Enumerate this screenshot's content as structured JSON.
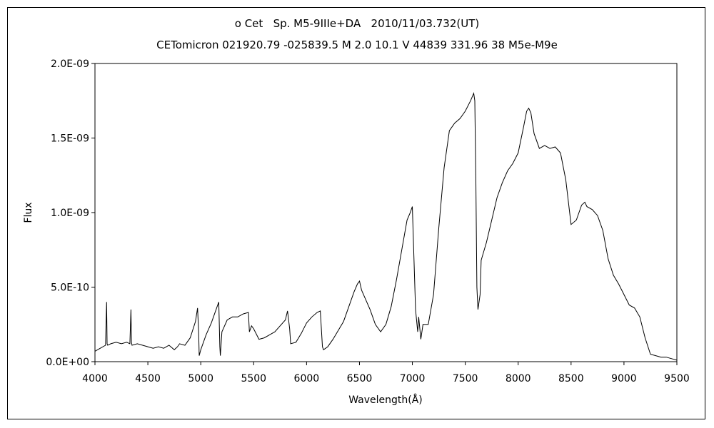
{
  "chart_data": {
    "type": "line",
    "title": "o Cet   Sp. M5-9IIIe+DA   2010/11/03.732(UT)",
    "subtitle": "CETomicron 021920.79 -025839.5 M 2.0 10.1 V 44839 331.96 38 M5e-M9e",
    "xlabel": "Wavelength(Å)",
    "ylabel": "Flux",
    "xlim": [
      4000,
      9500
    ],
    "ylim": [
      0,
      2e-09
    ],
    "x_ticks": [
      4000,
      4500,
      5000,
      5500,
      6000,
      6500,
      7000,
      7500,
      8000,
      8500,
      9000,
      9500
    ],
    "x_tick_labels": [
      "4000",
      "4500",
      "5000",
      "5500",
      "6000",
      "6500",
      "7000",
      "7500",
      "8000",
      "8500",
      "9000",
      "9500"
    ],
    "y_ticks": [
      0,
      5e-10,
      1e-09,
      1.5e-09,
      2e-09
    ],
    "y_tick_labels": [
      "0.0E+00",
      "5.0E-10",
      "1.0E-09",
      "1.5E-09",
      "2.0E-09"
    ],
    "grid": false,
    "legend": "none",
    "line_color": "#000000",
    "series": [
      {
        "x": [
          4000,
          4050,
          4100,
          4110,
          4115,
          4120,
          4150,
          4200,
          4250,
          4300,
          4330,
          4340,
          4345,
          4350,
          4400,
          4450,
          4500,
          4550,
          4600,
          4650,
          4700,
          4750,
          4780,
          4800,
          4850,
          4900,
          4950,
          4970,
          4980,
          4985,
          5000,
          5050,
          5100,
          5150,
          5170,
          5180,
          5185,
          5200,
          5250,
          5300,
          5350,
          5400,
          5450,
          5460,
          5480,
          5500,
          5550,
          5600,
          5650,
          5700,
          5750,
          5800,
          5820,
          5840,
          5850,
          5900,
          5950,
          6000,
          6050,
          6100,
          6130,
          6150,
          6160,
          6200,
          6250,
          6300,
          6350,
          6400,
          6450,
          6480,
          6500,
          6520,
          6550,
          6600,
          6650,
          6700,
          6750,
          6800,
          6850,
          6900,
          6950,
          6980,
          7000,
          7030,
          7050,
          7060,
          7080,
          7100,
          7150,
          7200,
          7250,
          7300,
          7350,
          7400,
          7450,
          7500,
          7550,
          7580,
          7590,
          7600,
          7610,
          7620,
          7640,
          7650,
          7700,
          7750,
          7800,
          7850,
          7900,
          7950,
          8000,
          8050,
          8080,
          8100,
          8120,
          8150,
          8200,
          8250,
          8300,
          8350,
          8400,
          8450,
          8500,
          8550,
          8600,
          8630,
          8650,
          8700,
          8750,
          8800,
          8850,
          8900,
          8950,
          9000,
          9050,
          9100,
          9150,
          9200,
          9250,
          9300,
          9350,
          9400,
          9450,
          9500
        ],
        "y": [
          7e-11,
          9e-11,
          1.1e-10,
          4e-10,
          1.2e-10,
          1.1e-10,
          1.2e-10,
          1.3e-10,
          1.2e-10,
          1.3e-10,
          1.2e-10,
          3.5e-10,
          1.3e-10,
          1.1e-10,
          1.2e-10,
          1.1e-10,
          1e-10,
          9e-11,
          1e-10,
          9e-11,
          1.1e-10,
          8e-11,
          1e-10,
          1.2e-10,
          1.1e-10,
          1.6e-10,
          2.7e-10,
          3.6e-10,
          2e-10,
          4e-11,
          8e-11,
          1.8e-10,
          2.6e-10,
          3.6e-10,
          4e-10,
          1e-10,
          4e-11,
          2e-10,
          2.8e-10,
          3e-10,
          3e-10,
          3.2e-10,
          3.3e-10,
          2e-10,
          2.4e-10,
          2.2e-10,
          1.5e-10,
          1.6e-10,
          1.8e-10,
          2e-10,
          2.4e-10,
          2.8e-10,
          3.4e-10,
          2.2e-10,
          1.2e-10,
          1.3e-10,
          1.9e-10,
          2.6e-10,
          3e-10,
          3.3e-10,
          3.4e-10,
          1e-10,
          8e-11,
          1e-10,
          1.5e-10,
          2.1e-10,
          2.7e-10,
          3.7e-10,
          4.7e-10,
          5.2e-10,
          5.4e-10,
          4.8e-10,
          4.3e-10,
          3.5e-10,
          2.5e-10,
          2e-10,
          2.5e-10,
          3.7e-10,
          5.5e-10,
          7.5e-10,
          9.5e-10,
          1e-09,
          1.04e-09,
          3.5e-10,
          2e-10,
          3e-10,
          1.5e-10,
          2.5e-10,
          2.5e-10,
          4.5e-10,
          9e-10,
          1.3e-09,
          1.55e-09,
          1.6e-09,
          1.63e-09,
          1.68e-09,
          1.75e-09,
          1.8e-09,
          1.75e-09,
          1.2e-09,
          5e-10,
          3.5e-10,
          4.5e-10,
          6.8e-10,
          8e-10,
          9.5e-10,
          1.1e-09,
          1.2e-09,
          1.28e-09,
          1.33e-09,
          1.4e-09,
          1.57e-09,
          1.68e-09,
          1.7e-09,
          1.67e-09,
          1.53e-09,
          1.43e-09,
          1.45e-09,
          1.43e-09,
          1.44e-09,
          1.4e-09,
          1.22e-09,
          9.2e-10,
          9.5e-10,
          1.05e-09,
          1.07e-09,
          1.04e-09,
          1.02e-09,
          9.8e-10,
          8.8e-10,
          6.9e-10,
          5.8e-10,
          5.2e-10,
          4.5e-10,
          3.8e-10,
          3.6e-10,
          3e-10,
          1.6e-10,
          5e-11,
          4e-11,
          3e-11,
          3e-11,
          2e-11,
          1e-11
        ]
      }
    ]
  }
}
